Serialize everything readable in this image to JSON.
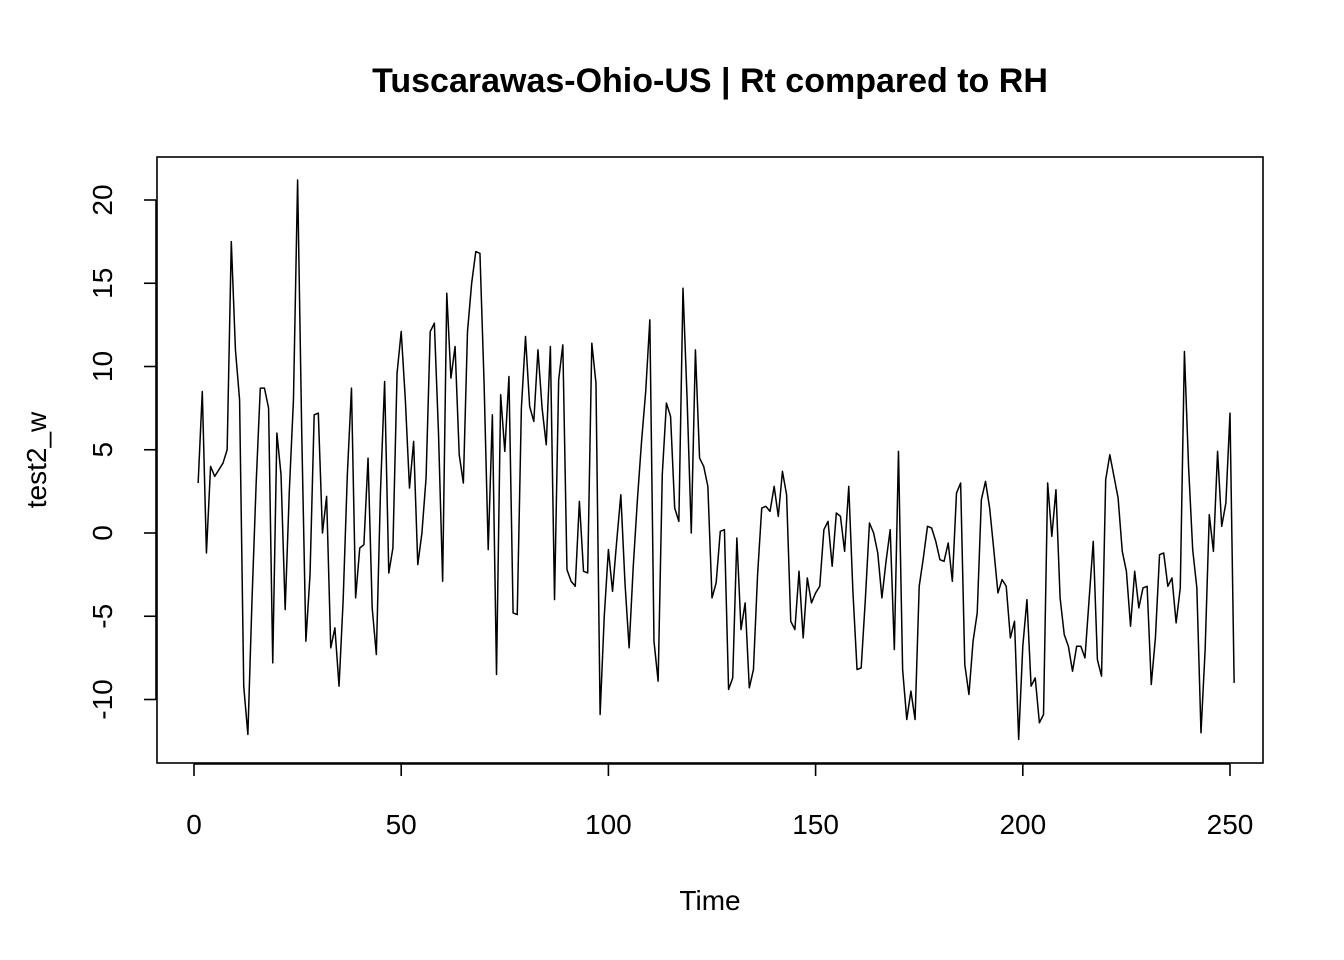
{
  "chart_data": {
    "type": "line",
    "title": "Tuscarawas-Ohio-US | Rt compared to RH",
    "xlabel": "Time",
    "ylabel": "test2_w",
    "xlim": [
      0,
      250
    ],
    "ylim": [
      -12.4,
      21.2
    ],
    "xticks": [
      0,
      50,
      100,
      150,
      200,
      250
    ],
    "yticks": [
      -10,
      -5,
      0,
      5,
      10,
      15,
      20
    ],
    "grid": false,
    "series": [
      {
        "color": "#000000",
        "y": [
          3.0,
          8.5,
          -1.2,
          4.0,
          3.4,
          3.8,
          4.2,
          5.0,
          17.5,
          11.0,
          8.0,
          -9.2,
          -12.1,
          -4.0,
          3.0,
          8.7,
          8.7,
          7.5,
          -7.8,
          6.0,
          3.5,
          -4.6,
          2.5,
          8.0,
          21.2,
          6.0,
          -6.5,
          -2.5,
          7.1,
          7.2,
          0.0,
          2.2,
          -6.9,
          -5.7,
          -9.2,
          -4.0,
          3.5,
          8.7,
          -3.9,
          -0.9,
          -0.7,
          4.5,
          -4.5,
          -7.3,
          2.5,
          9.1,
          -2.4,
          -0.9,
          9.6,
          12.1,
          8.0,
          2.7,
          5.5,
          -1.9,
          0.0,
          3.3,
          12.1,
          12.6,
          6.0,
          -2.9,
          14.4,
          9.3,
          11.2,
          4.7,
          3.0,
          12.1,
          15.0,
          16.9,
          16.8,
          9.0,
          -1.0,
          7.1,
          -8.5,
          8.3,
          4.9,
          9.4,
          -4.8,
          -4.9,
          7.5,
          11.8,
          7.6,
          6.7,
          11.0,
          7.5,
          5.3,
          11.2,
          -4.0,
          9.2,
          11.3,
          -2.2,
          -2.9,
          -3.2,
          1.9,
          -2.3,
          -2.4,
          11.4,
          9.0,
          -10.9,
          -5.0,
          -1.0,
          -3.5,
          -0.5,
          2.3,
          -3.0,
          -6.9,
          -2.0,
          2.0,
          5.5,
          8.5,
          12.8,
          -6.5,
          -8.9,
          3.5,
          7.8,
          7.0,
          1.5,
          0.7,
          14.7,
          8.0,
          0.0,
          11.0,
          4.5,
          4.0,
          2.8,
          -3.9,
          -3.0,
          0.1,
          0.2,
          -9.4,
          -8.7,
          -0.3,
          -5.8,
          -4.2,
          -9.3,
          -8.2,
          -2.5,
          1.5,
          1.6,
          1.3,
          2.8,
          1.0,
          3.7,
          2.3,
          -5.3,
          -5.8,
          -2.3,
          -6.3,
          -2.7,
          -4.2,
          -3.6,
          -3.2,
          0.2,
          0.7,
          -2.0,
          1.2,
          1.0,
          -1.1,
          2.8,
          -3.5,
          -8.2,
          -8.1,
          -4.0,
          0.6,
          0.0,
          -1.2,
          -3.9,
          -1.7,
          0.2,
          -7.0,
          4.9,
          -8.2,
          -11.2,
          -9.5,
          -11.2,
          -3.2,
          -1.5,
          0.4,
          0.3,
          -0.5,
          -1.6,
          -1.7,
          -0.6,
          -2.9,
          2.4,
          3.0,
          -7.9,
          -9.7,
          -6.5,
          -4.8,
          2.0,
          3.1,
          1.5,
          -1.0,
          -3.6,
          -2.8,
          -3.2,
          -6.3,
          -5.3,
          -12.4,
          -6.8,
          -4.0,
          -9.2,
          -8.7,
          -11.4,
          -10.9,
          3.0,
          -0.2,
          2.6,
          -3.9,
          -6.1,
          -6.8,
          -8.3,
          -6.8,
          -6.8,
          -7.5,
          -4.0,
          -0.5,
          -7.6,
          -8.6,
          3.2,
          4.7,
          3.4,
          2.1,
          -1.1,
          -2.3,
          -5.6,
          -2.3,
          -4.5,
          -3.3,
          -3.2,
          -9.1,
          -6.3,
          -1.3,
          -1.2,
          -3.2,
          -2.7,
          -5.4,
          -3.3,
          10.9,
          4.0,
          -1.0,
          -3.3,
          -12.0,
          -7.0,
          1.1,
          -1.1,
          4.9,
          0.4,
          1.8,
          7.2,
          -9.0
        ]
      }
    ]
  }
}
